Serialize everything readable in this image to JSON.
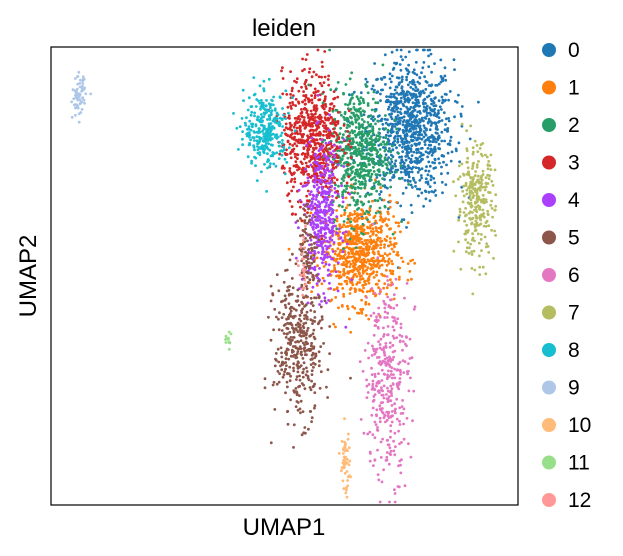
{
  "chart_data": {
    "type": "scatter",
    "title": "leiden",
    "xlabel": "UMAP1",
    "ylabel": "UMAP2",
    "xlim": [
      0,
      100
    ],
    "ylim": [
      0,
      100
    ],
    "grid": false,
    "ticks": false,
    "legend": {
      "placement": "right",
      "entries": [
        "0",
        "1",
        "2",
        "3",
        "4",
        "5",
        "6",
        "7",
        "8",
        "9",
        "10",
        "11",
        "12"
      ]
    },
    "series": [
      {
        "name": "0",
        "color": "#1f77b4",
        "clusters": [
          {
            "x": 77,
            "y": 82,
            "sx": 4.6,
            "sy": 7.5,
            "n": 900
          }
        ]
      },
      {
        "name": "1",
        "color": "#ff7f0e",
        "clusters": [
          {
            "x": 66,
            "y": 55,
            "sx": 4.0,
            "sy": 5.5,
            "n": 700
          }
        ]
      },
      {
        "name": "2",
        "color": "#279e68",
        "clusters": [
          {
            "x": 66,
            "y": 77,
            "sx": 3.2,
            "sy": 7.0,
            "n": 600
          }
        ]
      },
      {
        "name": "3",
        "color": "#d62728",
        "clusters": [
          {
            "x": 56,
            "y": 80,
            "sx": 3.2,
            "sy": 7.0,
            "n": 650
          }
        ]
      },
      {
        "name": "4",
        "color": "#aa40fc",
        "clusters": [
          {
            "x": 58,
            "y": 63,
            "sx": 2.0,
            "sy": 8.0,
            "n": 400
          }
        ]
      },
      {
        "name": "5",
        "color": "#8c564b",
        "clusters": [
          {
            "x": 53,
            "y": 35,
            "sx": 2.6,
            "sy": 8.0,
            "n": 400
          },
          {
            "x": 55,
            "y": 56,
            "sx": 1.0,
            "sy": 5.0,
            "n": 80
          }
        ]
      },
      {
        "name": "6",
        "color": "#e377c2",
        "clusters": [
          {
            "x": 72,
            "y": 28,
            "sx": 2.4,
            "sy": 11.0,
            "n": 350
          }
        ]
      },
      {
        "name": "7",
        "color": "#b5bd61",
        "clusters": [
          {
            "x": 91,
            "y": 66,
            "sx": 2.0,
            "sy": 6.0,
            "n": 280
          }
        ]
      },
      {
        "name": "8",
        "color": "#17becf",
        "clusters": [
          {
            "x": 46,
            "y": 82,
            "sx": 2.3,
            "sy": 4.0,
            "n": 300
          }
        ]
      },
      {
        "name": "9",
        "color": "#aec7e8",
        "clusters": [
          {
            "x": 6,
            "y": 89,
            "sx": 0.7,
            "sy": 2.2,
            "n": 70
          }
        ]
      },
      {
        "name": "10",
        "color": "#ffbb78",
        "clusters": [
          {
            "x": 63,
            "y": 9,
            "sx": 0.5,
            "sy": 3.5,
            "n": 50
          }
        ]
      },
      {
        "name": "11",
        "color": "#98df8a",
        "clusters": [
          {
            "x": 38,
            "y": 36,
            "sx": 0.5,
            "sy": 1.0,
            "n": 12
          }
        ]
      },
      {
        "name": "12",
        "color": "#ff9896",
        "clusters": [
          {
            "x": 54,
            "y": 51,
            "sx": 0.4,
            "sy": 3.0,
            "n": 25
          }
        ]
      }
    ]
  }
}
